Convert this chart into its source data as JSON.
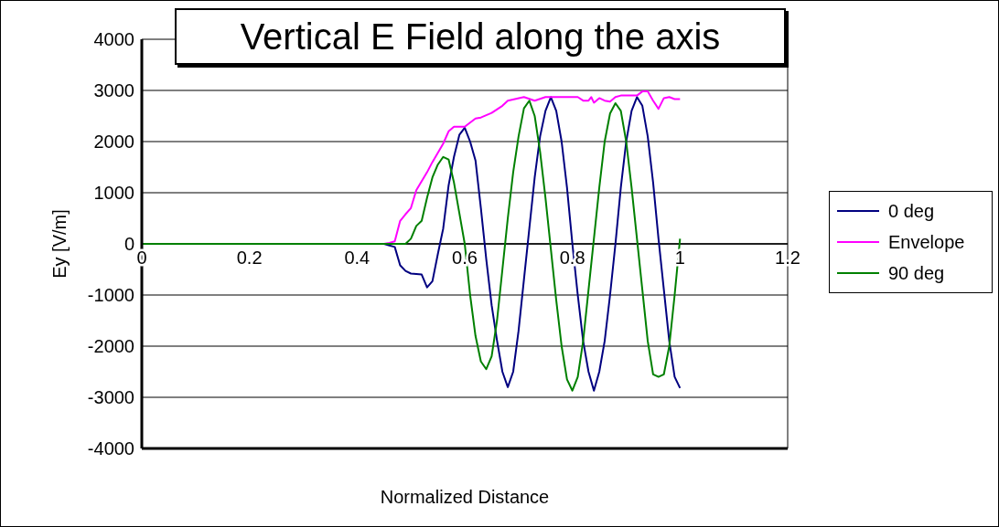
{
  "chart_data": {
    "type": "line",
    "title": "Vertical E Field along the axis",
    "xlabel": "Normalized Distance",
    "ylabel": "Ey [V/m]",
    "xlim": [
      0,
      1.2
    ],
    "xticks": [
      0,
      0.2,
      0.4,
      0.6,
      0.8,
      1,
      1.2
    ],
    "ylim": [
      -4000,
      4000
    ],
    "yticks": [
      -4000,
      -3000,
      -2000,
      -1000,
      0,
      1000,
      2000,
      3000,
      4000
    ],
    "grid": true,
    "legend": "right",
    "marker": "none",
    "line_style": "solid",
    "series": [
      {
        "name": "0 deg",
        "color": "#000080",
        "x": [
          0,
          0.45,
          0.46,
          0.47,
          0.48,
          0.49,
          0.5,
          0.52,
          0.53,
          0.54,
          0.55,
          0.56,
          0.57,
          0.58,
          0.59,
          0.6,
          0.61,
          0.62,
          0.63,
          0.64,
          0.65,
          0.66,
          0.67,
          0.68,
          0.69,
          0.7,
          0.71,
          0.72,
          0.73,
          0.74,
          0.75,
          0.76,
          0.77,
          0.78,
          0.79,
          0.8,
          0.81,
          0.82,
          0.83,
          0.84,
          0.85,
          0.86,
          0.87,
          0.88,
          0.89,
          0.9,
          0.91,
          0.92,
          0.93,
          0.94,
          0.95,
          0.96,
          0.97,
          0.98,
          0.99,
          1
        ],
        "values": [
          0,
          0,
          -30,
          -60,
          -420,
          -530,
          -580,
          -600,
          -850,
          -730,
          -200,
          300,
          1140,
          1700,
          2130,
          2270,
          2000,
          1630,
          700,
          -300,
          -1200,
          -1890,
          -2500,
          -2800,
          -2500,
          -1700,
          -700,
          300,
          1300,
          2100,
          2600,
          2870,
          2600,
          2000,
          1100,
          0,
          -1000,
          -1900,
          -2500,
          -2870,
          -2500,
          -1900,
          -1000,
          0,
          1100,
          2000,
          2600,
          2870,
          2700,
          2100,
          1200,
          100,
          -900,
          -1900,
          -2600,
          -2820
        ]
      },
      {
        "name": "Envelope",
        "color": "#ff00ff",
        "x": [
          0,
          0.45,
          0.46,
          0.47,
          0.48,
          0.49,
          0.5,
          0.51,
          0.53,
          0.54,
          0.56,
          0.57,
          0.58,
          0.59,
          0.6,
          0.62,
          0.63,
          0.65,
          0.67,
          0.68,
          0.71,
          0.73,
          0.75,
          0.81,
          0.82,
          0.83,
          0.835,
          0.84,
          0.85,
          0.86,
          0.87,
          0.88,
          0.89,
          0.9,
          0.92,
          0.93,
          0.94,
          0.95,
          0.96,
          0.97,
          0.98,
          0.99,
          1
        ],
        "values": [
          0,
          0,
          20,
          50,
          450,
          580,
          700,
          1050,
          1400,
          1600,
          1960,
          2200,
          2290,
          2290,
          2290,
          2450,
          2470,
          2560,
          2700,
          2800,
          2870,
          2800,
          2870,
          2870,
          2800,
          2800,
          2870,
          2760,
          2850,
          2800,
          2780,
          2870,
          2900,
          2900,
          2900,
          2980,
          2980,
          2800,
          2640,
          2850,
          2870,
          2830,
          2830
        ]
      },
      {
        "name": "90 deg",
        "color": "#008000",
        "x": [
          0,
          0.49,
          0.5,
          0.51,
          0.52,
          0.53,
          0.54,
          0.55,
          0.56,
          0.57,
          0.58,
          0.59,
          0.6,
          0.61,
          0.62,
          0.63,
          0.64,
          0.65,
          0.66,
          0.67,
          0.68,
          0.69,
          0.7,
          0.71,
          0.72,
          0.73,
          0.74,
          0.75,
          0.76,
          0.77,
          0.78,
          0.79,
          0.8,
          0.81,
          0.82,
          0.83,
          0.84,
          0.85,
          0.86,
          0.87,
          0.88,
          0.89,
          0.9,
          0.91,
          0.92,
          0.93,
          0.94,
          0.95,
          0.96,
          0.97,
          0.98,
          0.99,
          1
        ],
        "values": [
          0,
          0,
          100,
          350,
          450,
          900,
          1300,
          1550,
          1700,
          1650,
          1200,
          600,
          0,
          -1000,
          -1800,
          -2300,
          -2450,
          -2200,
          -1500,
          -500,
          500,
          1400,
          2100,
          2650,
          2800,
          2500,
          1800,
          900,
          -100,
          -1100,
          -2000,
          -2650,
          -2870,
          -2600,
          -1900,
          -900,
          100,
          1100,
          2000,
          2550,
          2750,
          2600,
          2000,
          1100,
          100,
          -900,
          -1900,
          -2550,
          -2600,
          -2550,
          -2000,
          -1000,
          100
        ]
      }
    ]
  }
}
